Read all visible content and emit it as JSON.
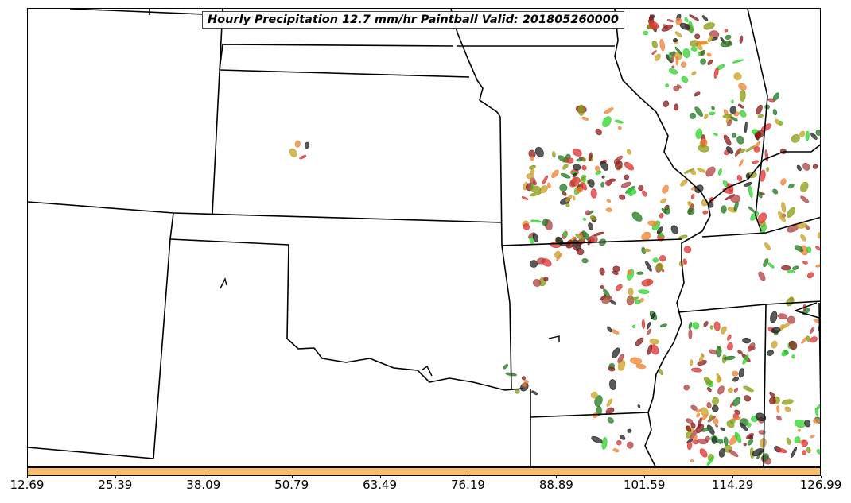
{
  "title": "Hourly Precipitation 12.7 mm/hr Paintball Valid: 201805260000",
  "colorbar": {
    "color": "#f9be6b",
    "ticks": [
      "12.69",
      "25.39",
      "38.09",
      "50.79",
      "63.49",
      "76.19",
      "88.89",
      "101.59",
      "114.29",
      "126.99"
    ]
  },
  "map": {
    "border_color": "#000000",
    "paintball_colors": [
      "#e03030",
      "#8b1a1a",
      "#2bd42b",
      "#1f7a1f",
      "#8a9a10",
      "#f08030",
      "#222222",
      "#b04040",
      "#c8a020"
    ]
  }
}
